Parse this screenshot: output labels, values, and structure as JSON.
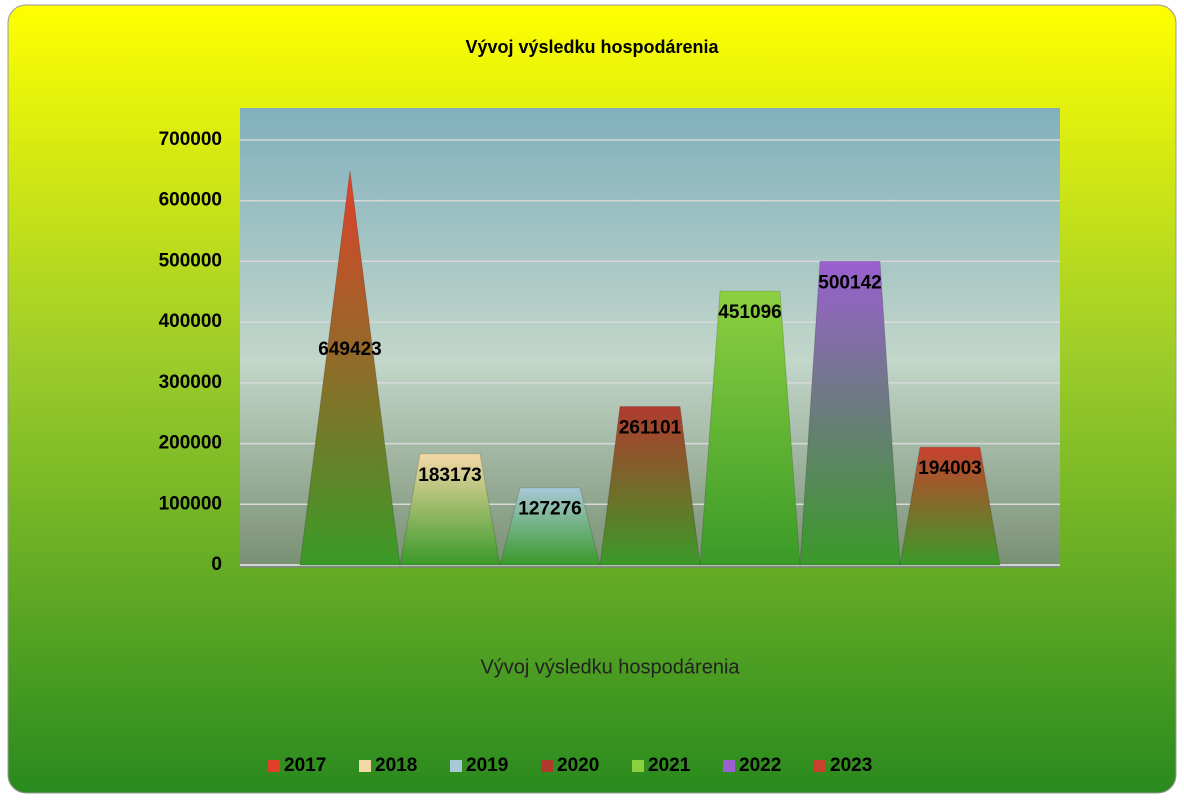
{
  "chart_data": {
    "type": "bar",
    "title": "Vývoj výsledku hospodárenia",
    "categories": [
      "Vývoj výsledku hospodárenia"
    ],
    "series": [
      {
        "name": "2017",
        "color": "#e0402a",
        "values": [
          649423
        ]
      },
      {
        "name": "2018",
        "color": "#f5d8a8",
        "values": [
          183173
        ]
      },
      {
        "name": "2019",
        "color": "#a8c8d8",
        "values": [
          127276
        ]
      },
      {
        "name": "2020",
        "color": "#b03a2e",
        "values": [
          261101
        ]
      },
      {
        "name": "2021",
        "color": "#8cd040",
        "values": [
          451096
        ]
      },
      {
        "name": "2022",
        "color": "#9a5fd0",
        "values": [
          500142
        ]
      },
      {
        "name": "2023",
        "color": "#c8402e",
        "values": [
          194003
        ]
      }
    ],
    "ylim": [
      0,
      700000
    ],
    "yticks": [
      0,
      100000,
      200000,
      300000,
      400000,
      500000,
      600000,
      700000
    ],
    "grid": true,
    "legend": "bottom"
  }
}
